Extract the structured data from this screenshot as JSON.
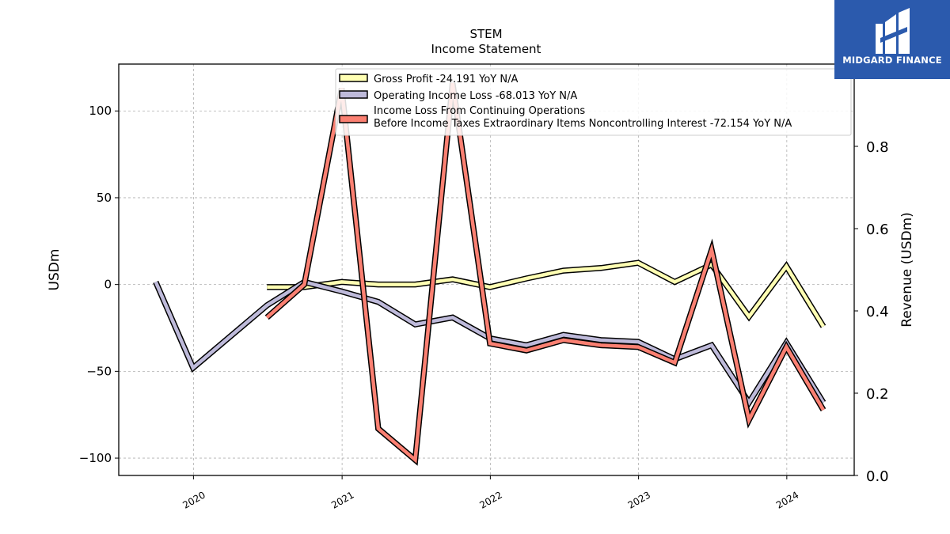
{
  "title": "STEM",
  "subtitle": "Income Statement",
  "brand": {
    "name": "MIDGARD FINANCE",
    "color": "#2b5aad"
  },
  "chart_data": {
    "type": "line",
    "xlabel": "",
    "ylabel": "USDm",
    "ylabel_right": "Revenue (USDm)",
    "ylim": [
      -110,
      127
    ],
    "ylim_right": [
      0.0,
      1.0
    ],
    "xlim": [
      "2019-07-01",
      "2024-06-15"
    ],
    "x_ticks": [
      "2020",
      "2021",
      "2022",
      "2023",
      "2024"
    ],
    "y_ticks": [
      100,
      50,
      0,
      -50,
      -100
    ],
    "y_tick_labels": [
      "100",
      "50",
      "0",
      "−50",
      "−100"
    ],
    "y_ticks_right": [
      0.0,
      0.2,
      0.4,
      0.6,
      0.8
    ],
    "y_tick_labels_right": [
      "0.0",
      "0.2",
      "0.4",
      "0.6",
      "0.8"
    ],
    "grid": true,
    "legend_position": "top-center",
    "series": [
      {
        "name": "Gross Profit  -24.191 YoY N/A",
        "color": "#ffffb3",
        "x": [
          "2020-06-30",
          "2020-09-30",
          "2020-12-31",
          "2021-03-31",
          "2021-06-30",
          "2021-09-30",
          "2021-12-31",
          "2022-03-31",
          "2022-06-30",
          "2022-09-30",
          "2022-12-31",
          "2023-03-31",
          "2023-06-30",
          "2023-09-30",
          "2023-12-31",
          "2024-03-31"
        ],
        "y": [
          -1.5,
          -1.5,
          1.5,
          0.0,
          0.0,
          3.0,
          -1.5,
          3.5,
          8.0,
          9.5,
          12.5,
          1.5,
          11.5,
          -18.5,
          10.5,
          -24.2
        ]
      },
      {
        "name": "Operating Income Loss  -68.013 YoY N/A",
        "color": "#bebada",
        "x": [
          "2019-09-30",
          "2019-12-31",
          "2020-06-30",
          "2020-09-30",
          "2020-12-31",
          "2021-03-31",
          "2021-06-30",
          "2021-09-30",
          "2021-12-31",
          "2022-03-31",
          "2022-06-30",
          "2022-09-30",
          "2022-12-31",
          "2023-03-31",
          "2023-06-30",
          "2023-09-30",
          "2023-12-31",
          "2024-03-31"
        ],
        "y": [
          1.5,
          -48.0,
          -12.0,
          1.5,
          -4.0,
          -10.0,
          -23.0,
          -19.0,
          -31.0,
          -35.0,
          -29.0,
          -32.0,
          -33.0,
          -43.0,
          -35.0,
          -68.0,
          -33.5,
          -68.0
        ]
      },
      {
        "name": "Income Loss From Continuing Operations\nBefore Income Taxes Extraordinary Items Noncontrolling Interest  -72.154 YoY N/A",
        "color": "#fb8072",
        "x": [
          "2020-06-30",
          "2020-09-30",
          "2020-12-31",
          "2021-03-31",
          "2021-06-30",
          "2021-09-30",
          "2021-12-31",
          "2022-03-31",
          "2022-06-30",
          "2022-09-30",
          "2022-12-31",
          "2023-03-31",
          "2023-06-30",
          "2023-09-30",
          "2023-12-31",
          "2024-03-31"
        ],
        "y": [
          -19.0,
          0.0,
          113.0,
          -83.0,
          -101.0,
          116.0,
          -34.0,
          -38.0,
          -32.0,
          -35.0,
          -36.0,
          -45.0,
          20.0,
          -78.0,
          -36.0,
          -72.2
        ]
      }
    ]
  }
}
